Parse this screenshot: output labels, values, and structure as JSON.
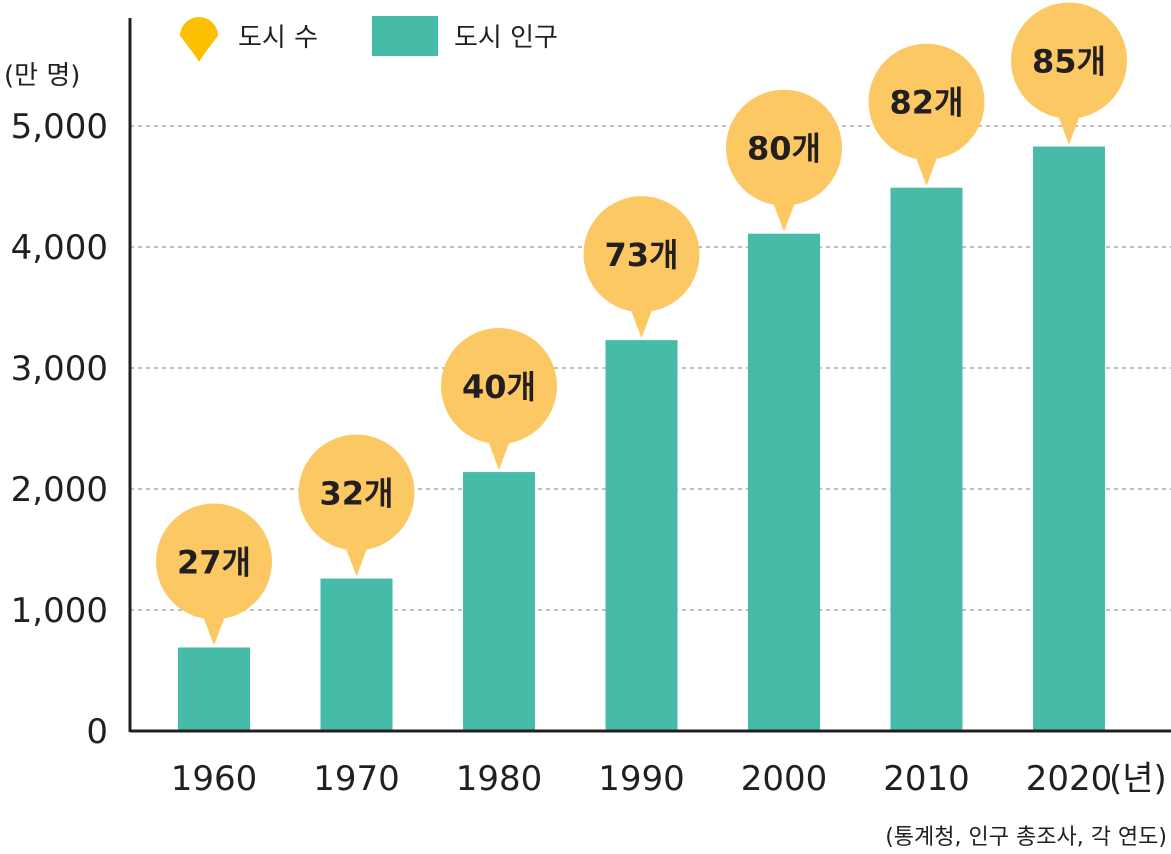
{
  "chart_data": {
    "type": "bar",
    "categories": [
      "1960",
      "1970",
      "1980",
      "1990",
      "2000",
      "2010",
      "2020"
    ],
    "x_unit": "(년)",
    "y_unit": "(만 명)",
    "y_ticks": [
      "0",
      "1,000",
      "2,000",
      "3,000",
      "4,000",
      "5,000"
    ],
    "y_tick_values": [
      0,
      1000,
      2000,
      3000,
      4000,
      5000
    ],
    "ylim": [
      0,
      5000
    ],
    "grid": true,
    "legend_position": "top-left",
    "series": [
      {
        "name": "도시 인구",
        "color": "#45bba8",
        "values": [
          690,
          1260,
          2140,
          3230,
          4110,
          4490,
          4830
        ]
      },
      {
        "name": "도시 수",
        "color": "#fcc864",
        "marker_color": "#fbc000",
        "labels": [
          "27개",
          "32개",
          "40개",
          "73개",
          "80개",
          "82개",
          "85개"
        ],
        "values": [
          27,
          32,
          40,
          73,
          80,
          82,
          85
        ]
      }
    ],
    "source": "(통계청, 인구 총조사, 각 연도)"
  }
}
